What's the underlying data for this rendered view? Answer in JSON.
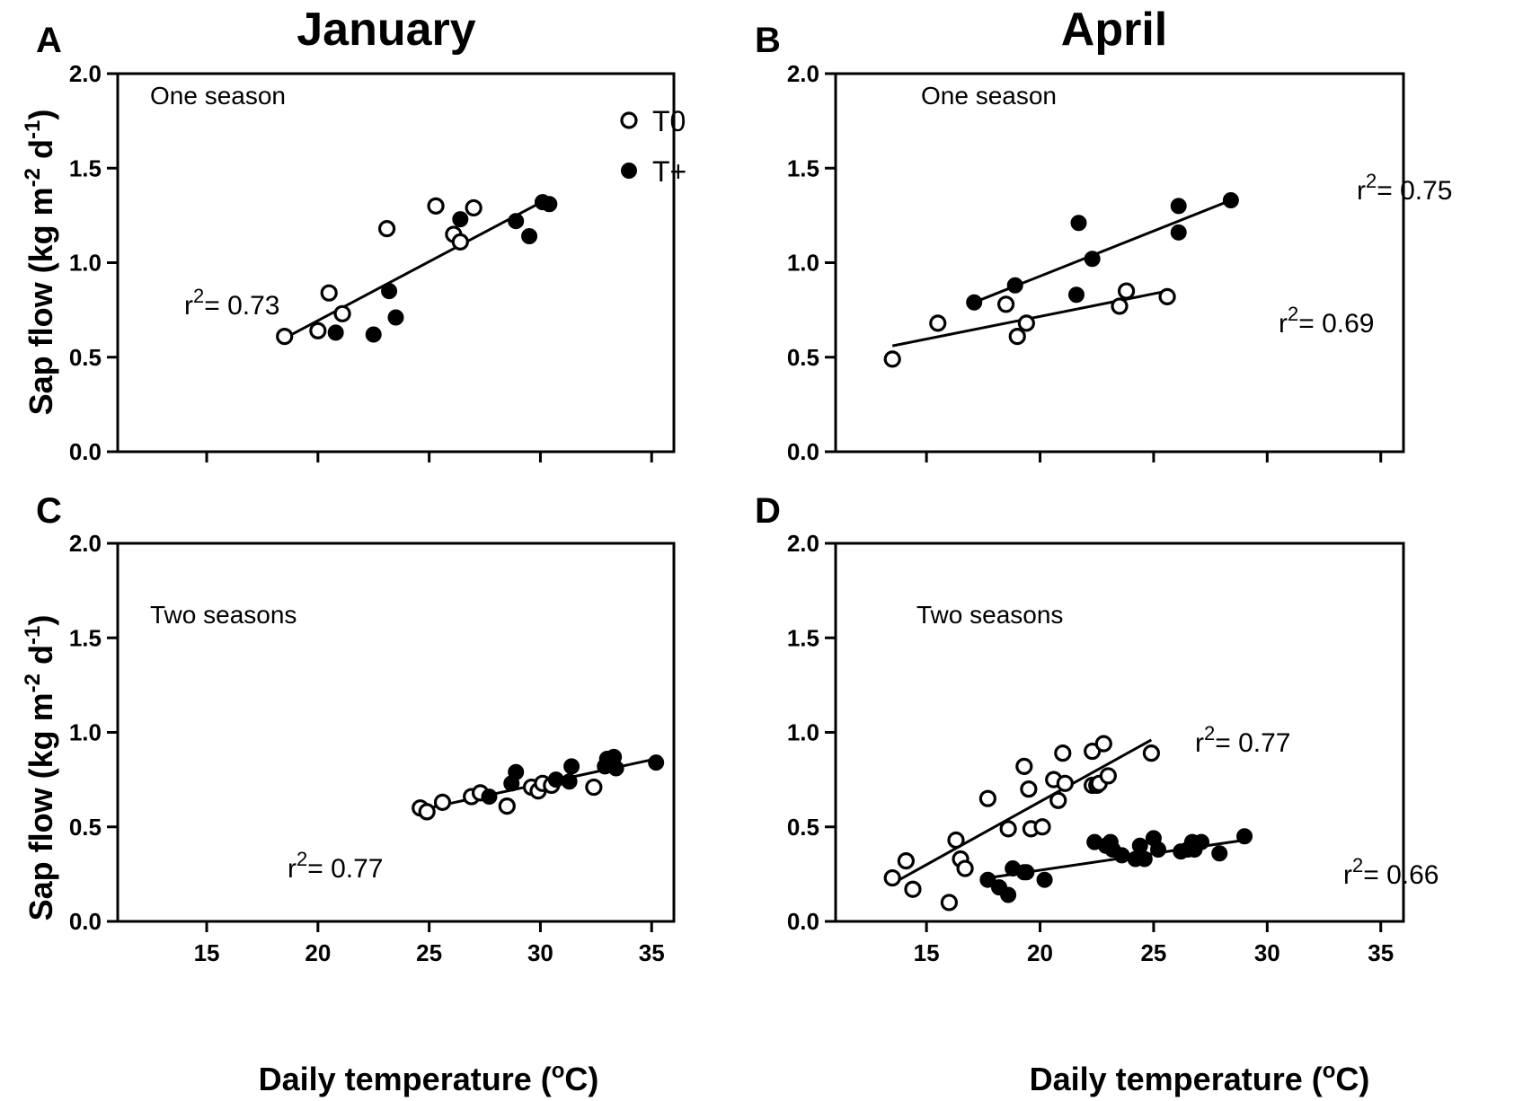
{
  "chart_data": {
    "type": "scatter",
    "figure": {
      "column_titles": [
        "January",
        "April"
      ],
      "xlabel_main": "Daily temperature (",
      "xlabel_degree": "o",
      "xlabel_unit": "C)",
      "ylabel_main": "Sap flow (kg m",
      "ylabel_exp1": "-2",
      "ylabel_mid": " d",
      "ylabel_exp2": "-1",
      "ylabel_end": ")",
      "r2_prefix": "r",
      "r2_sup": "2",
      "legend": {
        "entries": [
          {
            "name": "T0",
            "marker": "open-circle"
          },
          {
            "name": "T+",
            "marker": "filled-circle"
          }
        ]
      },
      "xlim": [
        11,
        36
      ],
      "xticks": [
        15,
        20,
        25,
        30,
        35
      ],
      "ylim": [
        0,
        2
      ],
      "yticks": [
        "0.0",
        "0.5",
        "1.0",
        "1.5",
        "2.0"
      ]
    },
    "panels": [
      {
        "letter": "A",
        "note": "One season",
        "show_xticklabels": false,
        "series": [
          {
            "name": "T0",
            "points": [
              [
                18.5,
                0.61
              ],
              [
                20,
                0.64
              ],
              [
                20.5,
                0.84
              ],
              [
                21.1,
                0.73
              ],
              [
                23.1,
                1.18
              ],
              [
                25.3,
                1.3
              ],
              [
                26.1,
                1.15
              ],
              [
                26.4,
                1.11
              ],
              [
                27,
                1.29
              ]
            ]
          },
          {
            "name": "T+",
            "points": [
              [
                20.8,
                0.63
              ],
              [
                22.5,
                0.62
              ],
              [
                23.2,
                0.85
              ],
              [
                23.5,
                0.71
              ],
              [
                26.4,
                1.23
              ],
              [
                28.9,
                1.22
              ],
              [
                29.5,
                1.14
              ],
              [
                30.1,
                1.32
              ],
              [
                30.4,
                1.31
              ]
            ]
          }
        ],
        "fits": [
          {
            "x": [
              18.5,
              30.2
            ],
            "y": [
              0.6,
              1.33
            ],
            "r2": "= 0.73"
          }
        ]
      },
      {
        "letter": "B",
        "note": "One season",
        "show_xticklabels": false,
        "series": [
          {
            "name": "T0",
            "points": [
              [
                13.5,
                0.49
              ],
              [
                15.5,
                0.68
              ],
              [
                18.5,
                0.78
              ],
              [
                19,
                0.61
              ],
              [
                19.4,
                0.68
              ],
              [
                23.5,
                0.77
              ],
              [
                23.8,
                0.85
              ],
              [
                25.6,
                0.82
              ]
            ]
          },
          {
            "name": "T+",
            "points": [
              [
                17.1,
                0.79
              ],
              [
                18.9,
                0.88
              ],
              [
                21.7,
                1.21
              ],
              [
                21.6,
                0.83
              ],
              [
                22.3,
                1.02
              ],
              [
                26.1,
                1.3
              ],
              [
                26.1,
                1.16
              ],
              [
                28.4,
                1.33
              ]
            ]
          }
        ],
        "fits": [
          {
            "x": [
              17.1,
              28.4
            ],
            "y": [
              0.79,
              1.33
            ],
            "r2": "= 0.75"
          },
          {
            "x": [
              13.5,
              25.6
            ],
            "y": [
              0.56,
              0.85
            ],
            "r2": "= 0.69"
          }
        ]
      },
      {
        "letter": "C",
        "note": "Two seasons",
        "show_xticklabels": true,
        "series": [
          {
            "name": "T0",
            "points": [
              [
                24.6,
                0.6
              ],
              [
                24.9,
                0.58
              ],
              [
                25.6,
                0.63
              ],
              [
                26.9,
                0.66
              ],
              [
                27.3,
                0.68
              ],
              [
                28.5,
                0.61
              ],
              [
                29.6,
                0.71
              ],
              [
                29.9,
                0.69
              ],
              [
                30.1,
                0.73
              ],
              [
                30.5,
                0.72
              ],
              [
                32.4,
                0.71
              ]
            ]
          },
          {
            "name": "T+",
            "points": [
              [
                27.7,
                0.66
              ],
              [
                28.7,
                0.73
              ],
              [
                28.9,
                0.79
              ],
              [
                30.7,
                0.75
              ],
              [
                31.3,
                0.74
              ],
              [
                31.4,
                0.82
              ],
              [
                32.9,
                0.82
              ],
              [
                33,
                0.86
              ],
              [
                33.3,
                0.87
              ],
              [
                33.4,
                0.81
              ],
              [
                35.2,
                0.84
              ]
            ]
          }
        ],
        "fits": [
          {
            "x": [
              24.6,
              35.2
            ],
            "y": [
              0.59,
              0.86
            ],
            "r2": "= 0.77"
          }
        ]
      },
      {
        "letter": "D",
        "note": "Two seasons",
        "show_xticklabels": true,
        "series": [
          {
            "name": "T0",
            "points": [
              [
                13.5,
                0.23
              ],
              [
                14.1,
                0.32
              ],
              [
                14.4,
                0.17
              ],
              [
                16,
                0.1
              ],
              [
                16.3,
                0.43
              ],
              [
                16.5,
                0.33
              ],
              [
                16.7,
                0.28
              ],
              [
                17.7,
                0.65
              ],
              [
                18.6,
                0.49
              ],
              [
                19.3,
                0.82
              ],
              [
                19.5,
                0.7
              ],
              [
                19.6,
                0.49
              ],
              [
                20.1,
                0.5
              ],
              [
                20.6,
                0.75
              ],
              [
                20.8,
                0.64
              ],
              [
                21,
                0.89
              ],
              [
                21.1,
                0.73
              ],
              [
                22.3,
                0.9
              ],
              [
                22.3,
                0.72
              ],
              [
                22.5,
                0.72
              ],
              [
                22.6,
                0.73
              ],
              [
                22.8,
                0.94
              ],
              [
                23,
                0.77
              ],
              [
                24.9,
                0.89
              ]
            ]
          },
          {
            "name": "T+",
            "points": [
              [
                17.7,
                0.22
              ],
              [
                18.2,
                0.18
              ],
              [
                18.6,
                0.14
              ],
              [
                18.8,
                0.28
              ],
              [
                19.3,
                0.26
              ],
              [
                19.4,
                0.26
              ],
              [
                20.2,
                0.22
              ],
              [
                22.4,
                0.42
              ],
              [
                22.9,
                0.4
              ],
              [
                23.1,
                0.42
              ],
              [
                23.2,
                0.38
              ],
              [
                23.6,
                0.35
              ],
              [
                24.2,
                0.33
              ],
              [
                24.4,
                0.4
              ],
              [
                24.6,
                0.33
              ],
              [
                25,
                0.44
              ],
              [
                25.2,
                0.38
              ],
              [
                26.2,
                0.37
              ],
              [
                26.5,
                0.38
              ],
              [
                26.7,
                0.42
              ],
              [
                26.8,
                0.38
              ],
              [
                27.1,
                0.42
              ],
              [
                27.9,
                0.36
              ],
              [
                29,
                0.45
              ]
            ]
          }
        ],
        "fits": [
          {
            "x": [
              13.5,
              24.9
            ],
            "y": [
              0.2,
              0.96
            ],
            "r2": "= 0.77"
          },
          {
            "x": [
              17.7,
              29.0
            ],
            "y": [
              0.23,
              0.43
            ],
            "r2": "= 0.66"
          }
        ]
      }
    ]
  }
}
